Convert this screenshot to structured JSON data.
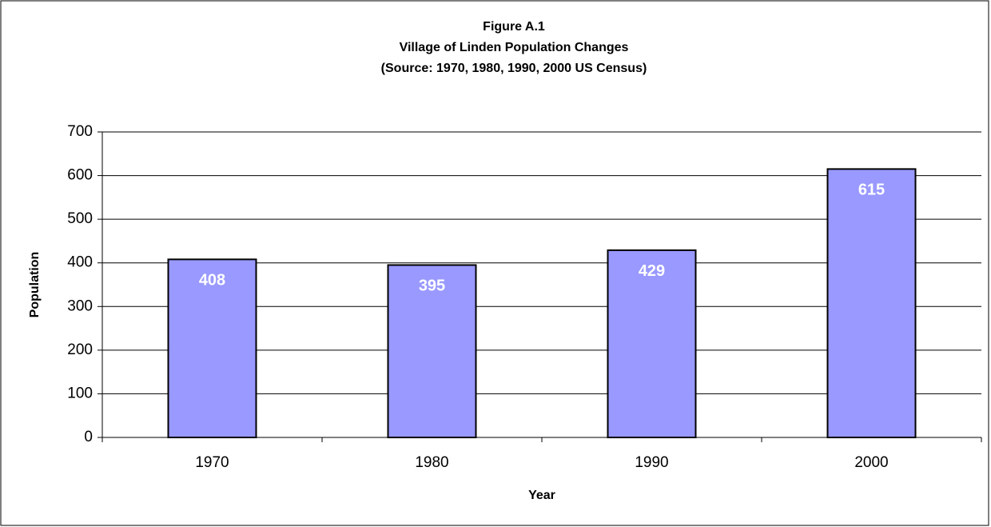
{
  "chart_data": {
    "type": "bar",
    "title": [
      "Figure A.1",
      "Village of Linden Population Changes",
      "(Source:  1970, 1980, 1990, 2000 US Census)"
    ],
    "x_label": "Year",
    "y_label": "Population",
    "categories": [
      "1970",
      "1980",
      "1990",
      "2000"
    ],
    "values": [
      408,
      395,
      429,
      615
    ],
    "color": "#9999ff",
    "ylim": [
      0,
      700
    ],
    "yticks": [
      0,
      100,
      200,
      300,
      400,
      500,
      600,
      700
    ],
    "grid": true,
    "data_labels": true
  }
}
